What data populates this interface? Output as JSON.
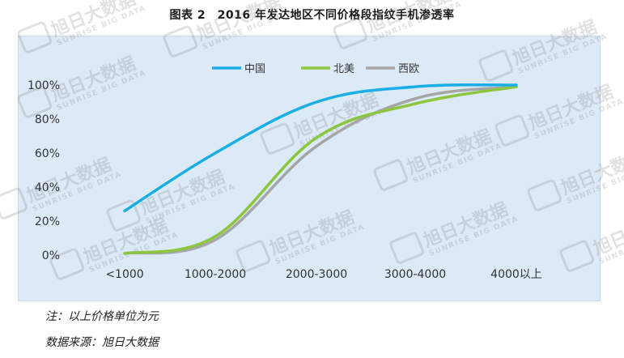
{
  "title": "图表 2　2016 年发达地区不同价格段指纹手机渗透率",
  "note": "注：以上价格单位为元",
  "source": "数据来源：旭日大数据",
  "watermark": {
    "cn": "旭日大数据",
    "en": "SUNRISE BIG DATA"
  },
  "colors": {
    "中国": "#1aaee6",
    "北美": "#8cc63f",
    "西欧": "#a6a6a6",
    "background": "#dce9f6"
  },
  "chart_data": {
    "type": "line",
    "title": "图表 2　2016 年发达地区不同价格段指纹手机渗透率",
    "xlabel": "",
    "ylabel": "",
    "x": [
      "<1000",
      "1000-2000",
      "2000-3000",
      "3000-4000",
      "4000以上"
    ],
    "ylim": [
      0,
      1
    ],
    "yticks": [
      "0%",
      "20%",
      "40%",
      "60%",
      "80%",
      "100%"
    ],
    "grid": false,
    "legend_position": "top",
    "series": [
      {
        "name": "中国",
        "values": [
          0.26,
          0.6,
          0.9,
          0.99,
          1.0
        ]
      },
      {
        "name": "北美",
        "values": [
          0.01,
          0.11,
          0.69,
          0.89,
          0.99
        ]
      },
      {
        "name": "西欧",
        "values": [
          0.01,
          0.09,
          0.64,
          0.92,
          0.99
        ]
      }
    ]
  }
}
